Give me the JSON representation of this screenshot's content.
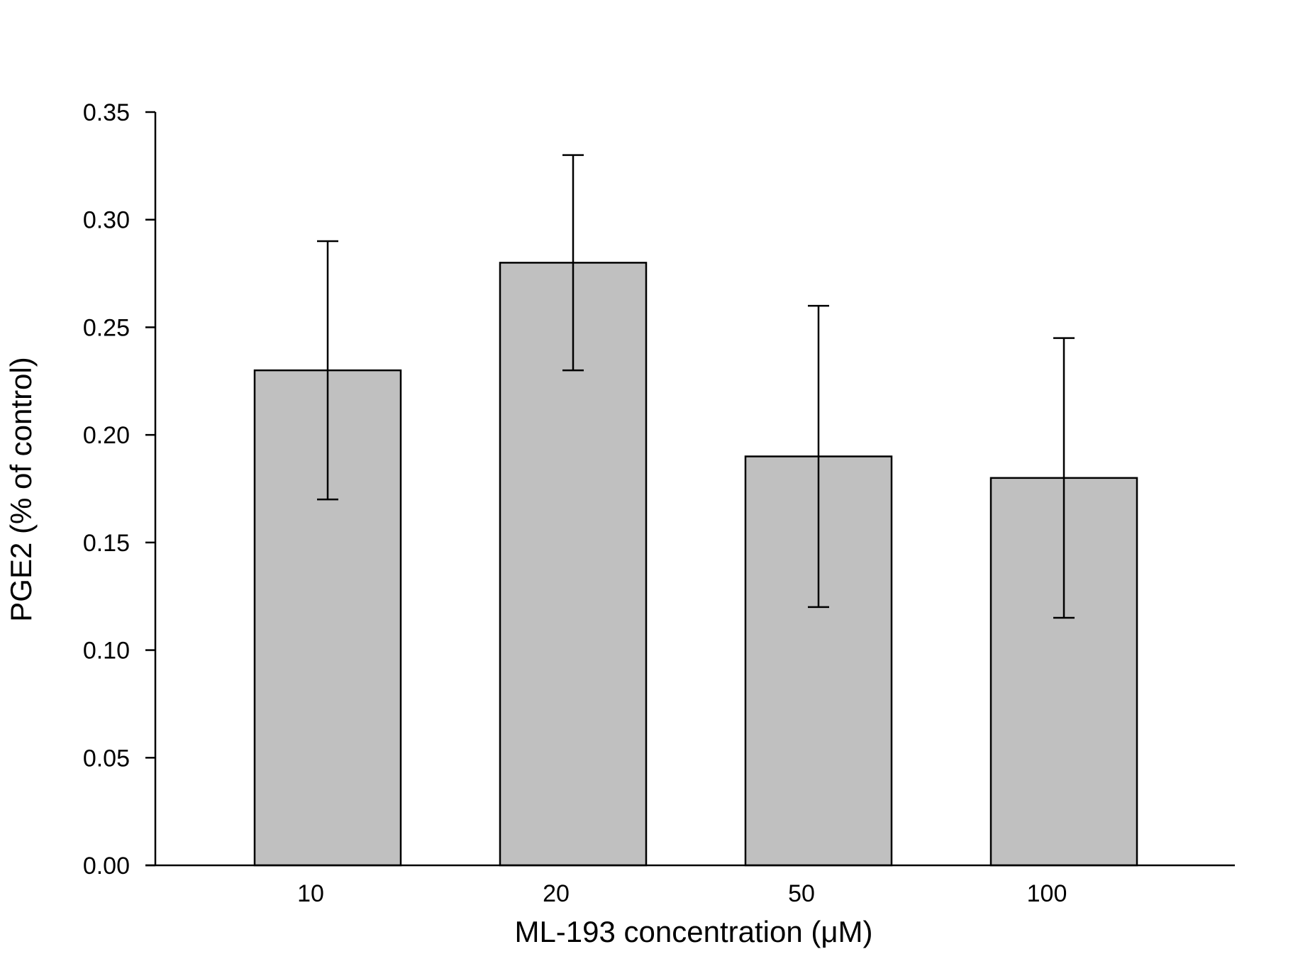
{
  "chart_data": {
    "type": "bar",
    "title": "",
    "xlabel": "ML-193 concentration (μM)",
    "ylabel": "PGE2 (% of control)",
    "categories": [
      "10",
      "20",
      "50",
      "100"
    ],
    "values": [
      0.23,
      0.28,
      0.19,
      0.18
    ],
    "error_upper": [
      0.29,
      0.33,
      0.26,
      0.245
    ],
    "error_lower": [
      0.17,
      0.23,
      0.12,
      0.115
    ],
    "ylim": [
      0,
      0.35
    ],
    "yticks": [
      "0.00",
      "0.05",
      "0.10",
      "0.15",
      "0.20",
      "0.25",
      "0.30",
      "0.35"
    ],
    "grid": false,
    "legend": "none",
    "colors": {
      "bar_fill": "#c0c0c0",
      "bar_stroke": "#000000",
      "axis": "#000000",
      "error_bar": "#000000"
    }
  }
}
